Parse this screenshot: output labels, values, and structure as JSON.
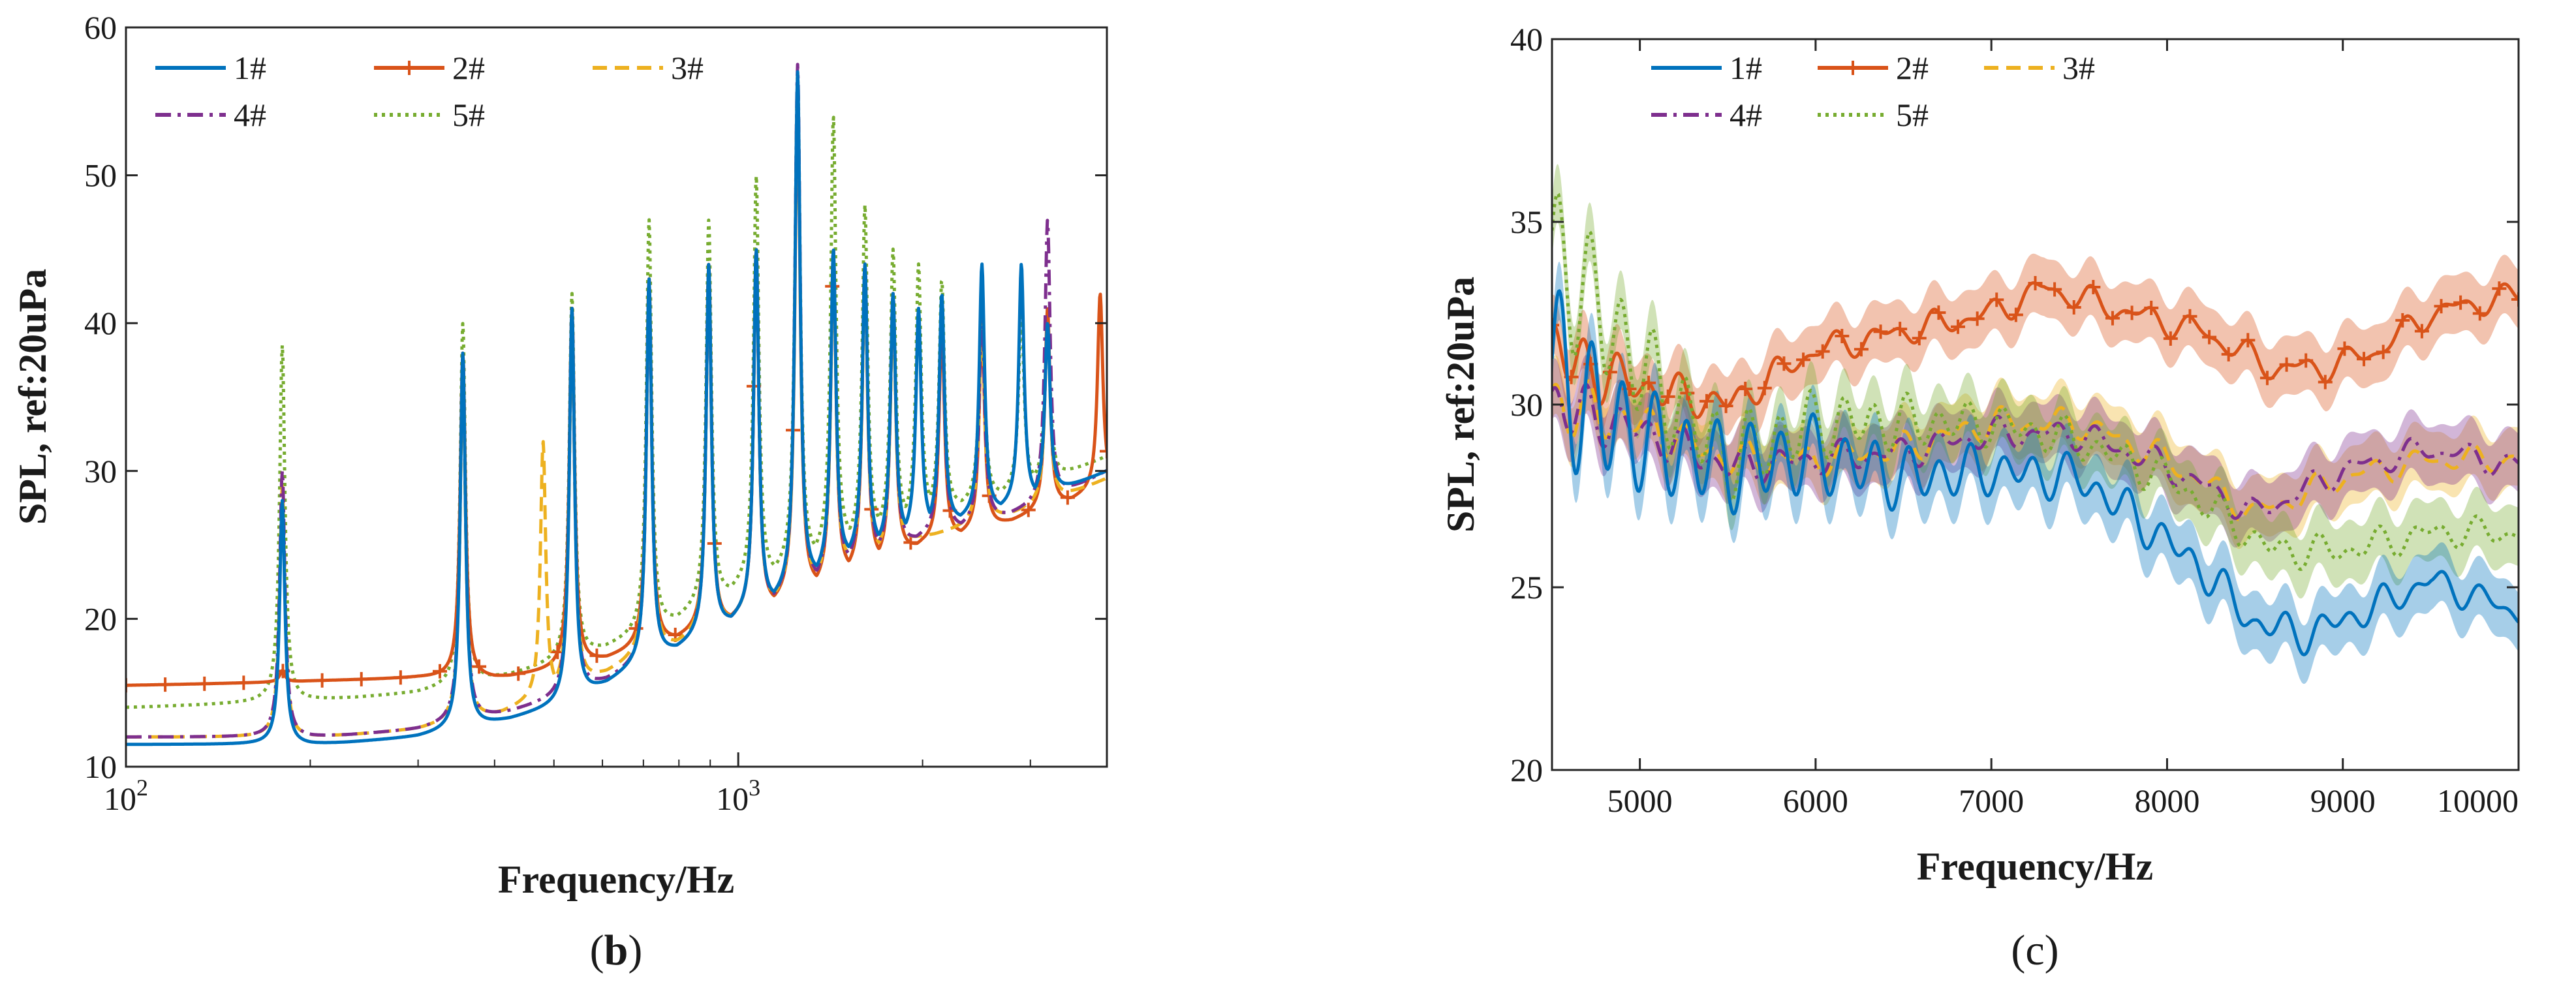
{
  "series_style": [
    {
      "name": "1#",
      "color": "#0072BD",
      "dash": "solid",
      "marker": "none"
    },
    {
      "name": "2#",
      "color": "#D95319",
      "dash": "solid",
      "marker": "plus"
    },
    {
      "name": "3#",
      "color": "#EDB120",
      "dash": "dashed",
      "marker": "none"
    },
    {
      "name": "4#",
      "color": "#7E2F8E",
      "dash": "dashdot",
      "marker": "none"
    },
    {
      "name": "5#",
      "color": "#77AC30",
      "dash": "dotted",
      "marker": "none"
    }
  ],
  "chart_data": [
    {
      "panel_label": "(b)",
      "panel_letter": "b",
      "type": "line",
      "title": "",
      "xlabel": "Frequency/Hz",
      "ylabel": "SPL, ref:20uPa",
      "x_scale": "log",
      "xlim": [
        100,
        4000
      ],
      "ylim": [
        10,
        60
      ],
      "x_ticks": [
        {
          "value": 100,
          "base": "10",
          "exp": "2"
        },
        {
          "value": 1000,
          "base": "10",
          "exp": "3"
        }
      ],
      "y_ticks": [
        10,
        20,
        30,
        40,
        50,
        60
      ],
      "y_tick_labels": [
        "10",
        "20",
        "30",
        "40",
        "50",
        "60"
      ],
      "legend": {
        "position": "top-left",
        "entries": [
          "1#",
          "2#",
          "3#",
          "4#",
          "5#"
        ]
      },
      "baselines": {
        "1#": [
          [
            100,
            11.5
          ],
          [
            200,
            11.5
          ],
          [
            300,
            12
          ],
          [
            400,
            13
          ],
          [
            500,
            14
          ],
          [
            700,
            17
          ],
          [
            1000,
            20
          ],
          [
            1500,
            24
          ],
          [
            2000,
            26
          ],
          [
            3000,
            28
          ],
          [
            4000,
            30
          ]
        ],
        "2#": [
          [
            100,
            15.5
          ],
          [
            200,
            15.8
          ],
          [
            300,
            16
          ],
          [
            400,
            16
          ],
          [
            500,
            16.5
          ],
          [
            700,
            18
          ],
          [
            1000,
            20
          ],
          [
            1500,
            23
          ],
          [
            2000,
            25
          ],
          [
            3000,
            27
          ],
          [
            4000,
            29
          ]
        ],
        "3#": [
          [
            100,
            12
          ],
          [
            200,
            12
          ],
          [
            300,
            12.5
          ],
          [
            400,
            13.5
          ],
          [
            500,
            15
          ],
          [
            700,
            17.5
          ],
          [
            1000,
            20
          ],
          [
            1500,
            23.5
          ],
          [
            2000,
            25.5
          ],
          [
            3000,
            27.5
          ],
          [
            4000,
            29.5
          ]
        ],
        "4#": [
          [
            100,
            12
          ],
          [
            200,
            12
          ],
          [
            300,
            12.5
          ],
          [
            400,
            13.5
          ],
          [
            500,
            14.5
          ],
          [
            700,
            17
          ],
          [
            1000,
            20
          ],
          [
            1500,
            23.5
          ],
          [
            2000,
            25.5
          ],
          [
            3000,
            27.5
          ],
          [
            4000,
            30
          ]
        ],
        "5#": [
          [
            100,
            14
          ],
          [
            200,
            14.5
          ],
          [
            300,
            15
          ],
          [
            400,
            16
          ],
          [
            500,
            17
          ],
          [
            700,
            19
          ],
          [
            1000,
            22
          ],
          [
            1500,
            25
          ],
          [
            2000,
            27
          ],
          [
            3000,
            29
          ],
          [
            4000,
            31
          ]
        ]
      },
      "peaks": {
        "1#": [
          [
            180,
            28
          ],
          [
            355,
            38
          ],
          [
            535,
            41
          ],
          [
            715,
            43
          ],
          [
            895,
            44
          ],
          [
            1070,
            45
          ],
          [
            1250,
            57
          ],
          [
            1430,
            45
          ],
          [
            1610,
            44
          ],
          [
            1790,
            42
          ],
          [
            1970,
            41
          ],
          [
            2150,
            42
          ],
          [
            2500,
            44
          ],
          [
            2900,
            44
          ],
          [
            3200,
            40
          ]
        ],
        "2#": [
          [
            180,
            16.5
          ],
          [
            355,
            38
          ],
          [
            535,
            41
          ],
          [
            715,
            43
          ],
          [
            895,
            44
          ],
          [
            1070,
            45
          ],
          [
            1250,
            56
          ],
          [
            1430,
            45
          ],
          [
            1610,
            44
          ],
          [
            1790,
            42
          ],
          [
            2150,
            40
          ],
          [
            2500,
            40
          ],
          [
            3200,
            41
          ],
          [
            3900,
            42
          ]
        ],
        "3#": [
          [
            180,
            29
          ],
          [
            355,
            37
          ],
          [
            480,
            32
          ],
          [
            535,
            40
          ],
          [
            715,
            43
          ],
          [
            895,
            44
          ],
          [
            1070,
            45
          ],
          [
            1250,
            56
          ],
          [
            1430,
            44
          ],
          [
            1610,
            43
          ],
          [
            1790,
            41
          ],
          [
            2500,
            40
          ],
          [
            3200,
            40
          ]
        ],
        "4#": [
          [
            180,
            30
          ],
          [
            355,
            38
          ],
          [
            535,
            41
          ],
          [
            715,
            43
          ],
          [
            895,
            44
          ],
          [
            1070,
            45
          ],
          [
            1250,
            57.5
          ],
          [
            1430,
            45
          ],
          [
            1610,
            44
          ],
          [
            1790,
            42
          ],
          [
            2150,
            41
          ],
          [
            2500,
            41
          ],
          [
            3200,
            47
          ]
        ],
        "5#": [
          [
            180,
            38.5
          ],
          [
            355,
            40
          ],
          [
            535,
            42
          ],
          [
            715,
            47
          ],
          [
            895,
            47
          ],
          [
            1070,
            50
          ],
          [
            1250,
            57
          ],
          [
            1430,
            54
          ],
          [
            1610,
            48
          ],
          [
            1790,
            45
          ],
          [
            1970,
            44
          ],
          [
            2150,
            43
          ],
          [
            2500,
            42
          ],
          [
            2900,
            41
          ],
          [
            3200,
            40
          ]
        ]
      }
    },
    {
      "panel_label": "(c)",
      "panel_letter": "c",
      "type": "line",
      "title": "",
      "xlabel": "Frequency/Hz",
      "ylabel": "SPL, ref:20uPa",
      "x_scale": "linear",
      "xlim": [
        4500,
        10000
      ],
      "ylim": [
        20,
        40
      ],
      "x_ticks": [
        5000,
        6000,
        7000,
        8000,
        9000,
        10000
      ],
      "x_tick_labels": [
        "5000",
        "6000",
        "7000",
        "8000",
        "9000",
        "10000"
      ],
      "y_ticks": [
        20,
        25,
        30,
        35,
        40
      ],
      "y_tick_labels": [
        "20",
        "25",
        "30",
        "35",
        "40"
      ],
      "legend": {
        "position": "top-left",
        "entries": [
          "1#",
          "2#",
          "3#",
          "4#",
          "5#"
        ]
      },
      "shaded_band_halfwidth": 0.8,
      "series": {
        "1#": [
          [
            4500,
            31
          ],
          [
            4700,
            30
          ],
          [
            5000,
            29
          ],
          [
            5500,
            28.3
          ],
          [
            6000,
            28.6
          ],
          [
            6500,
            28
          ],
          [
            7000,
            28.2
          ],
          [
            7500,
            28
          ],
          [
            7800,
            27
          ],
          [
            8200,
            25.5
          ],
          [
            8500,
            24
          ],
          [
            8800,
            23.7
          ],
          [
            9200,
            24.5
          ],
          [
            9500,
            25.2
          ],
          [
            10000,
            24.3
          ]
        ],
        "2#": [
          [
            4500,
            31.5
          ],
          [
            4700,
            31
          ],
          [
            5000,
            30.5
          ],
          [
            5500,
            30
          ],
          [
            6000,
            31.5
          ],
          [
            6500,
            32
          ],
          [
            7000,
            32.5
          ],
          [
            7300,
            33.2
          ],
          [
            7800,
            32.5
          ],
          [
            8200,
            32
          ],
          [
            8600,
            31
          ],
          [
            8900,
            31
          ],
          [
            9200,
            31.5
          ],
          [
            9500,
            32.5
          ],
          [
            10000,
            33
          ]
        ],
        "3#": [
          [
            4500,
            30
          ],
          [
            5000,
            29.5
          ],
          [
            5500,
            28.5
          ],
          [
            6000,
            28.5
          ],
          [
            6500,
            28.8
          ],
          [
            7000,
            29.5
          ],
          [
            7500,
            29.5
          ],
          [
            8000,
            28.5
          ],
          [
            8500,
            27
          ],
          [
            9000,
            28
          ],
          [
            9500,
            28.5
          ],
          [
            10000,
            28.5
          ]
        ],
        "4#": [
          [
            4500,
            30
          ],
          [
            5000,
            29.3
          ],
          [
            5500,
            28.3
          ],
          [
            6000,
            28.5
          ],
          [
            6500,
            28.7
          ],
          [
            7000,
            29.2
          ],
          [
            7500,
            29.2
          ],
          [
            8000,
            28.3
          ],
          [
            8500,
            27
          ],
          [
            9000,
            28.2
          ],
          [
            9500,
            28.8
          ],
          [
            10000,
            28.3
          ]
        ],
        "5#": [
          [
            4500,
            34
          ],
          [
            4700,
            33
          ],
          [
            5000,
            31
          ],
          [
            5500,
            28.5
          ],
          [
            6000,
            29.5
          ],
          [
            6500,
            29.5
          ],
          [
            7000,
            29.5
          ],
          [
            7500,
            29
          ],
          [
            8000,
            28
          ],
          [
            8300,
            27
          ],
          [
            8600,
            26
          ],
          [
            9000,
            26
          ],
          [
            9500,
            26.5
          ],
          [
            10000,
            26.5
          ]
        ]
      },
      "ripple": {
        "1#": [
          [
            4500,
            4.5
          ],
          [
            5000,
            2.5
          ],
          [
            6000,
            1.8
          ],
          [
            7000,
            1
          ],
          [
            10000,
            0.4
          ]
        ],
        "2#": [
          [
            4500,
            1.8
          ],
          [
            5000,
            0.8
          ],
          [
            6000,
            0.4
          ],
          [
            10000,
            0.3
          ]
        ],
        "3#": [
          [
            4500,
            1.5
          ],
          [
            5000,
            0.8
          ],
          [
            6000,
            0.5
          ],
          [
            10000,
            0.3
          ]
        ],
        "4#": [
          [
            4500,
            1.5
          ],
          [
            5000,
            0.8
          ],
          [
            6000,
            0.5
          ],
          [
            10000,
            0.3
          ]
        ],
        "5#": [
          [
            4500,
            4
          ],
          [
            5000,
            2.5
          ],
          [
            6000,
            1.5
          ],
          [
            7000,
            0.8
          ],
          [
            10000,
            0.4
          ]
        ]
      }
    }
  ]
}
